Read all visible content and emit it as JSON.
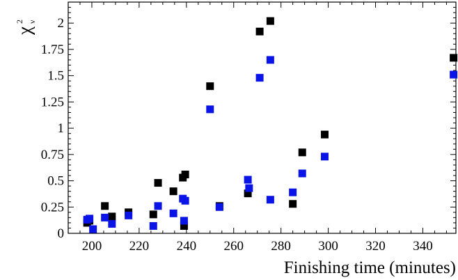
{
  "chart_data": {
    "type": "scatter",
    "title": "",
    "xlabel": "Finishing time (minutes)",
    "ylabel": {
      "base": "χ",
      "superscript": "2",
      "subscript": "ν"
    },
    "xlim": [
      190,
      354
    ],
    "ylim": [
      0,
      2.2
    ],
    "x_ticks": [
      200,
      220,
      240,
      260,
      280,
      300,
      320,
      340
    ],
    "x_tick_labels": [
      "200",
      "220",
      "240",
      "260",
      "280",
      "300",
      "320",
      "340"
    ],
    "y_ticks": [
      0,
      0.25,
      0.5,
      0.75,
      1,
      1.25,
      1.5,
      1.75,
      2
    ],
    "y_tick_labels": [
      "0",
      "0.25",
      "0.5",
      "0.75",
      "1",
      "1.25",
      "1.5",
      "1.75",
      "2"
    ],
    "grid": false,
    "marker": "square",
    "series": [
      {
        "color": "#000000",
        "points": [
          [
            198,
            0.1
          ],
          [
            199,
            0.12
          ],
          [
            205.5,
            0.26
          ],
          [
            208.5,
            0.16
          ],
          [
            215.5,
            0.2
          ],
          [
            226,
            0.18
          ],
          [
            228,
            0.48
          ],
          [
            234.5,
            0.4
          ],
          [
            238.5,
            0.53
          ],
          [
            239,
            0.07
          ],
          [
            239.5,
            0.56
          ],
          [
            250,
            1.4
          ],
          [
            254,
            0.26
          ],
          [
            266,
            0.38
          ],
          [
            271,
            1.92
          ],
          [
            275.5,
            2.02
          ],
          [
            285,
            0.28
          ],
          [
            289,
            0.77
          ],
          [
            298.5,
            0.94
          ],
          [
            353,
            1.67
          ]
        ]
      },
      {
        "color": "#0a14e6",
        "points": [
          [
            198,
            0.13
          ],
          [
            199,
            0.14
          ],
          [
            200.5,
            0.04
          ],
          [
            205.5,
            0.15
          ],
          [
            208.5,
            0.09
          ],
          [
            215.5,
            0.17
          ],
          [
            226,
            0.07
          ],
          [
            228,
            0.26
          ],
          [
            234.5,
            0.19
          ],
          [
            238.5,
            0.33
          ],
          [
            239,
            0.12
          ],
          [
            239.5,
            0.31
          ],
          [
            250,
            1.18
          ],
          [
            254,
            0.25
          ],
          [
            266,
            0.51
          ],
          [
            266.5,
            0.43
          ],
          [
            271,
            1.48
          ],
          [
            275.5,
            1.65
          ],
          [
            275.5,
            0.32
          ],
          [
            285,
            0.39
          ],
          [
            289,
            0.57
          ],
          [
            298.5,
            0.73
          ],
          [
            353,
            1.51
          ]
        ]
      }
    ]
  }
}
